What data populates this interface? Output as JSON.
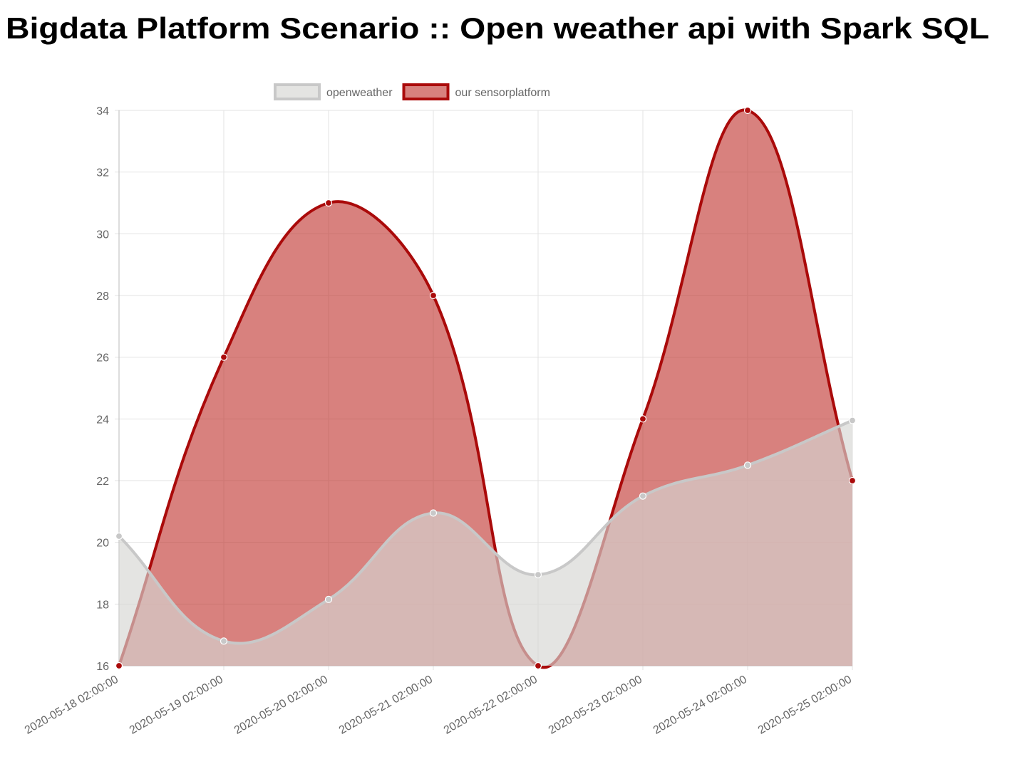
{
  "chart_data": {
    "type": "line",
    "title": "Bigdata Platform Scenario :: Open weather api with Spark SQL",
    "categories": [
      "2020-05-18 02:00:00",
      "2020-05-19 02:00:00",
      "2020-05-20 02:00:00",
      "2020-05-21 02:00:00",
      "2020-05-22 02:00:00",
      "2020-05-23 02:00:00",
      "2020-05-24 02:00:00",
      "2020-05-25 02:00:00"
    ],
    "series": [
      {
        "name": "openweather",
        "color": "#c8c8c8",
        "fill": "rgba(214,214,210,0.65)",
        "values": [
          20.2,
          16.8,
          18.15,
          20.95,
          18.95,
          21.5,
          22.5,
          23.95
        ]
      },
      {
        "name": "our sensorplatform",
        "color": "#aa0a0a",
        "fill": "rgba(190,45,40,0.6)",
        "values": [
          16,
          26,
          31,
          28,
          16,
          24,
          34,
          22
        ]
      }
    ],
    "ylim": [
      16,
      34
    ],
    "yticks": [
      16,
      18,
      20,
      22,
      24,
      26,
      28,
      30,
      32,
      34
    ],
    "grid": true,
    "legend": "top"
  }
}
